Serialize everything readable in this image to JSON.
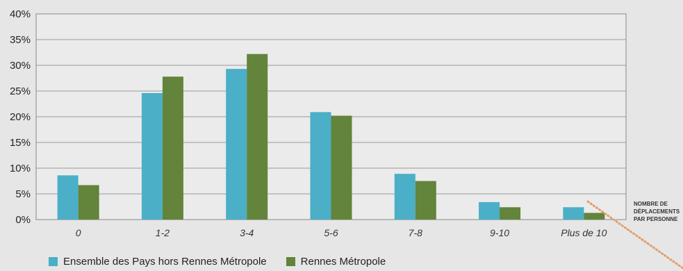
{
  "chart_data": {
    "type": "bar",
    "categories": [
      "0",
      "1-2",
      "3-4",
      "5-6",
      "7-8",
      "9-10",
      "Plus de 10"
    ],
    "series": [
      {
        "name": "Ensemble des Pays hors Rennes Métropole",
        "color": "#4aafc7",
        "values": [
          8.6,
          24.6,
          29.3,
          20.9,
          8.9,
          3.4,
          2.4
        ]
      },
      {
        "name": "Rennes Métropole",
        "color": "#62843b",
        "values": [
          6.7,
          27.8,
          32.2,
          20.2,
          7.5,
          2.4,
          1.3
        ]
      }
    ],
    "ylim": [
      0,
      40
    ],
    "yticks": [
      "0%",
      "5%",
      "10%",
      "15%",
      "20%",
      "25%",
      "30%",
      "35%",
      "40%"
    ],
    "xlabel_lines": [
      "NOMBRE DE",
      "DÉPLACEMENTS",
      "PAR PERSONNE"
    ],
    "grid": true,
    "legend_position": "bottom-left"
  }
}
